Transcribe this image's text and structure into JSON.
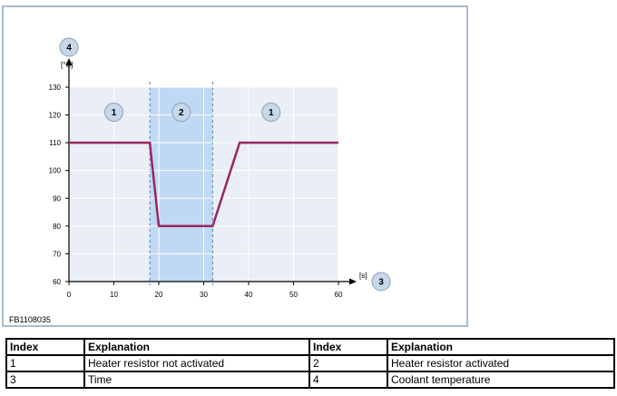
{
  "chart_data": {
    "type": "line",
    "x": [
      0,
      18,
      20,
      32,
      38,
      60
    ],
    "series": [
      {
        "values": [
          110,
          110,
          80,
          80,
          110,
          110
        ],
        "color": "#9b2560"
      }
    ],
    "xlim": [
      0,
      60
    ],
    "ylim": [
      60,
      130
    ],
    "x_ticks": [
      0,
      10,
      20,
      30,
      40,
      50,
      60
    ],
    "y_ticks": [
      60,
      70,
      80,
      90,
      100,
      110,
      120,
      130
    ],
    "xlabel": "[s]",
    "ylabel": "[°C]",
    "highlight_region": {
      "x_start": 18,
      "x_end": 32,
      "color": "#bfd9f5"
    },
    "grid": true,
    "region_markers": [
      {
        "label": "1",
        "x": 10,
        "y": 121
      },
      {
        "label": "2",
        "x": 25,
        "y": 121
      },
      {
        "label": "1",
        "x": 45,
        "y": 121
      }
    ],
    "axis_markers": {
      "y_axis": "4",
      "x_axis": "3"
    },
    "figure_code": "FB1108035"
  },
  "table": {
    "headers": [
      "Index",
      "Explanation",
      "Index",
      "Explanation"
    ],
    "rows": [
      [
        "1",
        "Heater resistor not activated",
        "2",
        "Heater resistor activated"
      ],
      [
        "3",
        "Time",
        "4",
        "Coolant temperature"
      ]
    ]
  },
  "colors": {
    "plot_bg": "#e9eff5",
    "grid": "#ffffff",
    "line": "#9b2560",
    "marker_fill": "#c6d8ea",
    "frame": "#a9bccd"
  }
}
